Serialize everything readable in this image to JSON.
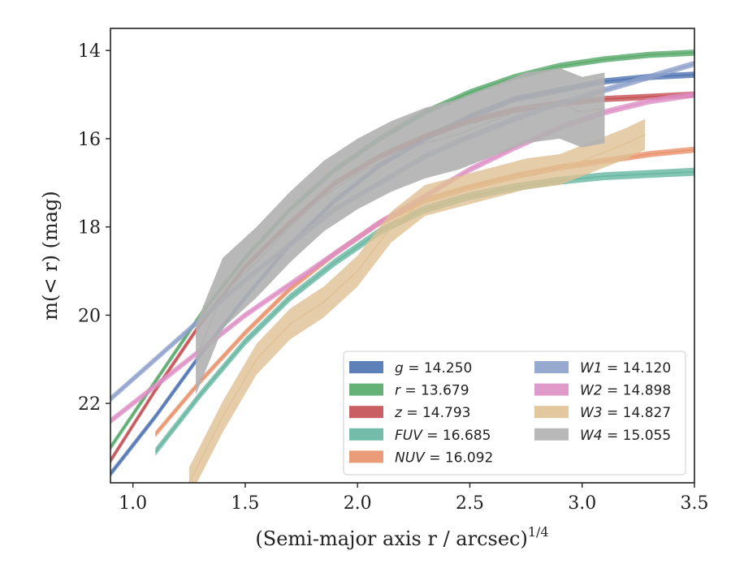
{
  "chart_data": {
    "type": "line",
    "title": "",
    "xlabel": "(Semi-major axis r / arcsec)",
    "xlabel_exponent": "1/4",
    "ylabel": "m(< r) (mag)",
    "xlim": [
      0.9,
      3.5
    ],
    "ylim": [
      23.8,
      13.5
    ],
    "y_inverted": true,
    "xticks": [
      "1.0",
      "1.5",
      "2.0",
      "2.5",
      "3.0",
      "3.5"
    ],
    "yticks": [
      "14",
      "16",
      "18",
      "20",
      "22"
    ],
    "grid": false,
    "legend_position": "lower-right",
    "series": [
      {
        "name": "g",
        "value": "14.250",
        "color": "#4c72b0",
        "kind": "band",
        "x": [
          0.9,
          1.1,
          1.3,
          1.5,
          1.7,
          1.9,
          2.1,
          2.3,
          2.5,
          2.7,
          2.9,
          3.1,
          3.3,
          3.5
        ],
        "y": [
          23.6,
          22.3,
          20.9,
          19.6,
          18.4,
          17.4,
          16.6,
          16.0,
          15.5,
          15.1,
          14.9,
          14.7,
          14.6,
          14.55
        ],
        "w": 0.07
      },
      {
        "name": "r",
        "value": "13.679",
        "color": "#55a868",
        "kind": "band",
        "x": [
          0.9,
          1.1,
          1.3,
          1.5,
          1.7,
          1.9,
          2.1,
          2.3,
          2.5,
          2.7,
          2.9,
          3.1,
          3.3,
          3.5
        ],
        "y": [
          23.0,
          21.5,
          20.0,
          18.7,
          17.6,
          16.7,
          16.0,
          15.4,
          14.95,
          14.6,
          14.35,
          14.2,
          14.1,
          14.05
        ],
        "w": 0.07
      },
      {
        "name": "z",
        "value": "14.793",
        "color": "#c44e52",
        "kind": "band",
        "x": [
          0.9,
          1.1,
          1.3,
          1.5,
          1.7,
          1.9,
          2.1,
          2.3,
          2.5,
          2.7,
          2.9,
          3.1,
          3.3,
          3.5
        ],
        "y": [
          23.3,
          21.7,
          20.2,
          18.9,
          17.9,
          17.0,
          16.4,
          15.95,
          15.6,
          15.35,
          15.2,
          15.1,
          15.05,
          15.0
        ],
        "w": 0.07
      },
      {
        "name": "FUV",
        "value": "16.685",
        "color": "#64b5a0",
        "kind": "band",
        "x": [
          1.1,
          1.3,
          1.5,
          1.7,
          1.9,
          2.1,
          2.3,
          2.5,
          2.7,
          2.9,
          3.1,
          3.3,
          3.5
        ],
        "y": [
          23.1,
          21.8,
          20.6,
          19.6,
          18.8,
          18.1,
          17.6,
          17.3,
          17.1,
          16.95,
          16.85,
          16.8,
          16.75
        ],
        "w": 0.09
      },
      {
        "name": "NUV",
        "value": "16.092",
        "color": "#e8916a",
        "kind": "band",
        "x": [
          1.1,
          1.3,
          1.5,
          1.7,
          1.9,
          2.1,
          2.3,
          2.5,
          2.7,
          2.9,
          3.1,
          3.3,
          3.5
        ],
        "y": [
          22.7,
          21.5,
          20.4,
          19.4,
          18.6,
          17.9,
          17.4,
          17.1,
          16.85,
          16.65,
          16.5,
          16.35,
          16.25
        ],
        "w": 0.07
      },
      {
        "name": "W1",
        "value": "14.120",
        "color": "#8da0cb",
        "kind": "band",
        "x": [
          0.9,
          1.1,
          1.3,
          1.5,
          1.7,
          1.9,
          2.1,
          2.3,
          2.5,
          2.7,
          2.9,
          3.1,
          3.3,
          3.5
        ],
        "y": [
          21.9,
          21.0,
          20.1,
          19.2,
          18.4,
          17.6,
          17.0,
          16.4,
          15.95,
          15.55,
          15.2,
          14.9,
          14.6,
          14.3
        ],
        "w": 0.07
      },
      {
        "name": "W2",
        "value": "14.898",
        "color": "#dd8fc4",
        "kind": "band",
        "x": [
          0.9,
          1.1,
          1.3,
          1.5,
          1.7,
          1.9,
          2.1,
          2.3,
          2.5,
          2.7,
          2.9,
          3.1,
          3.3,
          3.5
        ],
        "y": [
          22.4,
          21.6,
          20.8,
          20.0,
          19.3,
          18.6,
          17.9,
          17.3,
          16.7,
          16.2,
          15.75,
          15.4,
          15.15,
          15.0
        ],
        "w": 0.07
      },
      {
        "name": "W3",
        "value": "14.827",
        "color": "#e0c194",
        "kind": "band",
        "x": [
          1.25,
          1.4,
          1.55,
          1.7,
          1.85,
          2.0,
          2.15,
          2.3,
          2.45,
          2.6,
          2.75,
          2.9,
          3.05,
          3.2,
          3.28
        ],
        "y": [
          23.8,
          22.3,
          21.0,
          20.2,
          19.7,
          19.0,
          18.0,
          17.4,
          17.2,
          17.0,
          16.8,
          16.7,
          16.4,
          16.1,
          15.9
        ],
        "w": 0.35
      },
      {
        "name": "W4",
        "value": "15.055",
        "color": "#b0b0b0",
        "kind": "band",
        "x": [
          1.28,
          1.4,
          1.55,
          1.7,
          1.85,
          2.0,
          2.15,
          2.3,
          2.45,
          2.6,
          2.75,
          2.9,
          3.0,
          3.1
        ],
        "y": [
          21.0,
          19.5,
          18.8,
          18.0,
          17.3,
          16.8,
          16.4,
          16.1,
          15.9,
          15.6,
          15.3,
          15.2,
          15.4,
          15.3
        ],
        "w": 0.8
      }
    ]
  }
}
